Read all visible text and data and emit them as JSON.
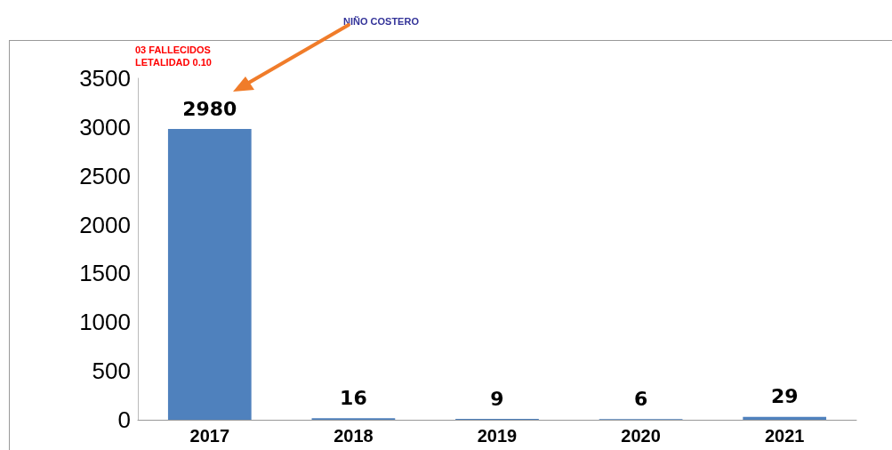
{
  "chart_data": {
    "type": "bar",
    "categories": [
      "2017",
      "2018",
      "2019",
      "2020",
      "2021"
    ],
    "values": [
      2980,
      16,
      9,
      6,
      29
    ],
    "color": "#4f81bd",
    "ylim": [
      0,
      3500
    ],
    "yticks": [
      0,
      500,
      1000,
      1500,
      2000,
      2500,
      3000,
      3500
    ],
    "grid": false,
    "data_labels": true,
    "annotations": [
      "NIÑO COSTERO",
      "03 FALLECIDOS",
      "LETALIDAD 0.10"
    ]
  }
}
